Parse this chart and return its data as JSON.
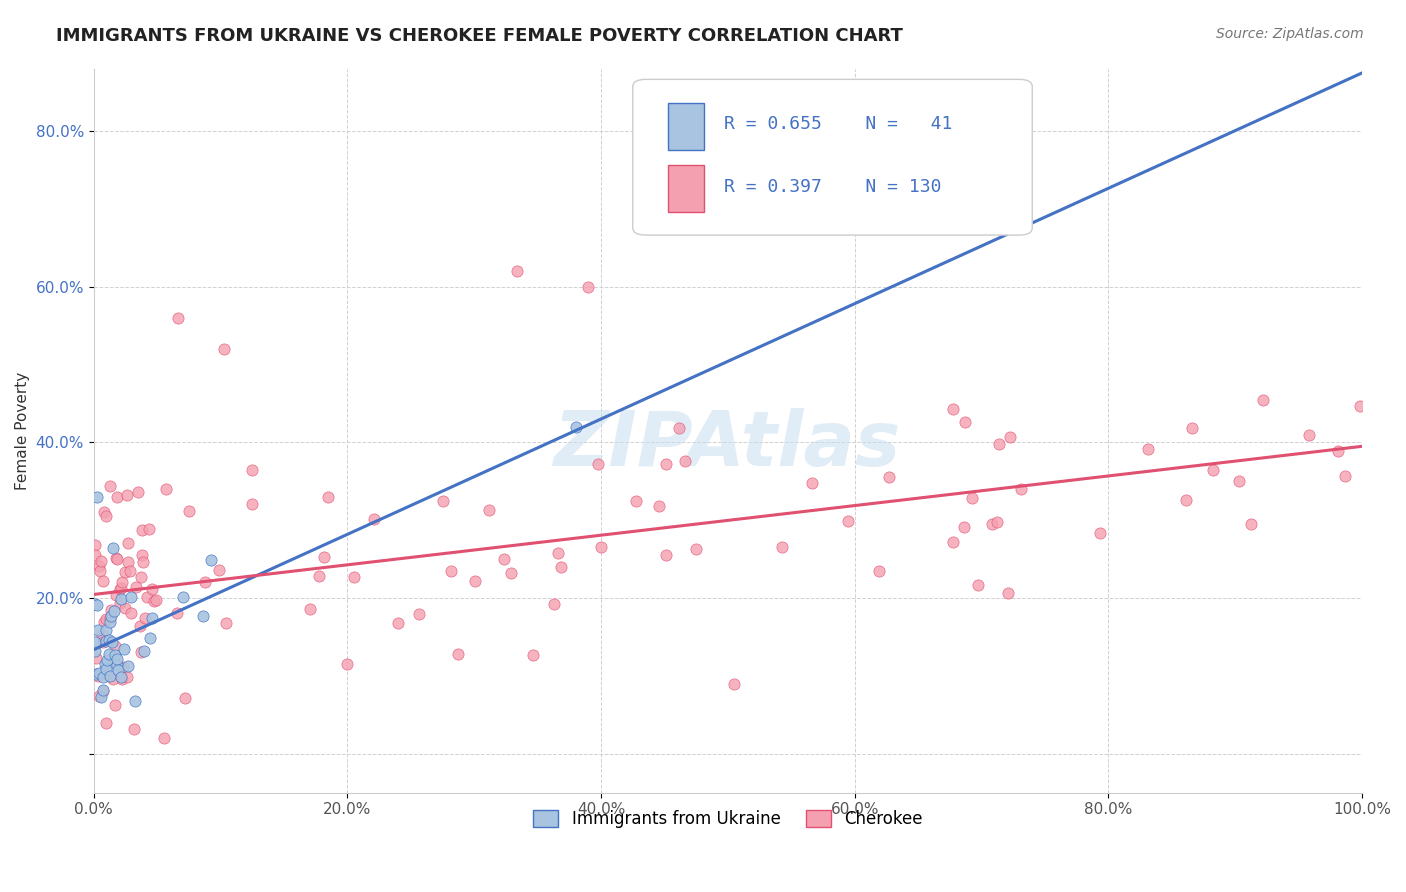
{
  "title": "IMMIGRANTS FROM UKRAINE VS CHEROKEE FEMALE POVERTY CORRELATION CHART",
  "source_text": "Source: ZipAtlas.com",
  "xlabel": "",
  "ylabel": "Female Poverty",
  "xlim": [
    0,
    1.0
  ],
  "ylim": [
    -0.05,
    0.88
  ],
  "xtick_labels": [
    "0.0%",
    "20.0%",
    "40.0%",
    "60.0%",
    "80.0%",
    "100.0%"
  ],
  "ytick_labels": [
    "",
    "20.0%",
    "40.0%",
    "60.0%",
    "80.0%"
  ],
  "legend_r1": "R = 0.655",
  "legend_n1": "N =  41",
  "legend_r2": "R = 0.397",
  "legend_n2": "N = 130",
  "color_ukraine": "#a8c4e0",
  "color_cherokee": "#f4a0b0",
  "color_ukraine_line": "#4472c4",
  "color_cherokee_line": "#e05070",
  "watermark": "ZIPAtlas",
  "watermark_color": "#c8ddf0",
  "title_fontsize": 13,
  "axis_label_fontsize": 11,
  "tick_fontsize": 11,
  "legend_fontsize": 13,
  "source_fontsize": 10
}
